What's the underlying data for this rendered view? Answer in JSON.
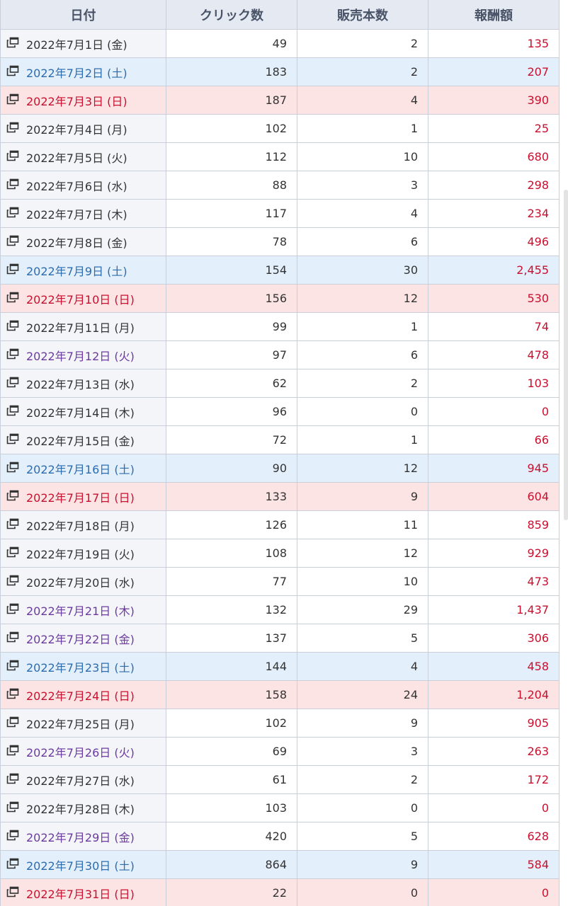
{
  "header": {
    "date": "日付",
    "clicks": "クリック数",
    "sales": "販売本数",
    "reward": "報酬額"
  },
  "rows": [
    {
      "date": "2022年7月1日 (金)",
      "clicks": "49",
      "sales": "2",
      "reward": "135",
      "type": "weekday"
    },
    {
      "date": "2022年7月2日 (土)",
      "clicks": "183",
      "sales": "2",
      "reward": "207",
      "type": "sat"
    },
    {
      "date": "2022年7月3日 (日)",
      "clicks": "187",
      "sales": "4",
      "reward": "390",
      "type": "sun"
    },
    {
      "date": "2022年7月4日 (月)",
      "clicks": "102",
      "sales": "1",
      "reward": "25",
      "type": "weekday"
    },
    {
      "date": "2022年7月5日 (火)",
      "clicks": "112",
      "sales": "10",
      "reward": "680",
      "type": "weekday"
    },
    {
      "date": "2022年7月6日 (水)",
      "clicks": "88",
      "sales": "3",
      "reward": "298",
      "type": "weekday"
    },
    {
      "date": "2022年7月7日 (木)",
      "clicks": "117",
      "sales": "4",
      "reward": "234",
      "type": "weekday"
    },
    {
      "date": "2022年7月8日 (金)",
      "clicks": "78",
      "sales": "6",
      "reward": "496",
      "type": "weekday"
    },
    {
      "date": "2022年7月9日 (土)",
      "clicks": "154",
      "sales": "30",
      "reward": "2,455",
      "type": "sat"
    },
    {
      "date": "2022年7月10日 (日)",
      "clicks": "156",
      "sales": "12",
      "reward": "530",
      "type": "sun"
    },
    {
      "date": "2022年7月11日 (月)",
      "clicks": "99",
      "sales": "1",
      "reward": "74",
      "type": "weekday"
    },
    {
      "date": "2022年7月12日 (火)",
      "clicks": "97",
      "sales": "6",
      "reward": "478",
      "type": "visited"
    },
    {
      "date": "2022年7月13日 (水)",
      "clicks": "62",
      "sales": "2",
      "reward": "103",
      "type": "weekday"
    },
    {
      "date": "2022年7月14日 (木)",
      "clicks": "96",
      "sales": "0",
      "reward": "0",
      "type": "weekday"
    },
    {
      "date": "2022年7月15日 (金)",
      "clicks": "72",
      "sales": "1",
      "reward": "66",
      "type": "weekday"
    },
    {
      "date": "2022年7月16日 (土)",
      "clicks": "90",
      "sales": "12",
      "reward": "945",
      "type": "sat"
    },
    {
      "date": "2022年7月17日 (日)",
      "clicks": "133",
      "sales": "9",
      "reward": "604",
      "type": "sun"
    },
    {
      "date": "2022年7月18日 (月)",
      "clicks": "126",
      "sales": "11",
      "reward": "859",
      "type": "weekday"
    },
    {
      "date": "2022年7月19日 (火)",
      "clicks": "108",
      "sales": "12",
      "reward": "929",
      "type": "weekday"
    },
    {
      "date": "2022年7月20日 (水)",
      "clicks": "77",
      "sales": "10",
      "reward": "473",
      "type": "weekday"
    },
    {
      "date": "2022年7月21日 (木)",
      "clicks": "132",
      "sales": "29",
      "reward": "1,437",
      "type": "visited"
    },
    {
      "date": "2022年7月22日 (金)",
      "clicks": "137",
      "sales": "5",
      "reward": "306",
      "type": "visited"
    },
    {
      "date": "2022年7月23日 (土)",
      "clicks": "144",
      "sales": "4",
      "reward": "458",
      "type": "sat"
    },
    {
      "date": "2022年7月24日 (日)",
      "clicks": "158",
      "sales": "24",
      "reward": "1,204",
      "type": "sun"
    },
    {
      "date": "2022年7月25日 (月)",
      "clicks": "102",
      "sales": "9",
      "reward": "905",
      "type": "weekday"
    },
    {
      "date": "2022年7月26日 (火)",
      "clicks": "69",
      "sales": "3",
      "reward": "263",
      "type": "visited"
    },
    {
      "date": "2022年7月27日 (水)",
      "clicks": "61",
      "sales": "2",
      "reward": "172",
      "type": "weekday"
    },
    {
      "date": "2022年7月28日 (木)",
      "clicks": "103",
      "sales": "0",
      "reward": "0",
      "type": "weekday"
    },
    {
      "date": "2022年7月29日 (金)",
      "clicks": "420",
      "sales": "5",
      "reward": "628",
      "type": "visited"
    },
    {
      "date": "2022年7月30日 (土)",
      "clicks": "864",
      "sales": "9",
      "reward": "584",
      "type": "sat"
    },
    {
      "date": "2022年7月31日 (日)",
      "clicks": "22",
      "sales": "0",
      "reward": "0",
      "type": "sun"
    }
  ],
  "icons": {
    "row_link": "external-window-icon"
  },
  "colors": {
    "header_bg": "#e4e9f2",
    "saturday": "#2b6cb0",
    "sunday": "#c8102e",
    "visited_link": "#6b3aa0",
    "reward": "#c8102e"
  }
}
